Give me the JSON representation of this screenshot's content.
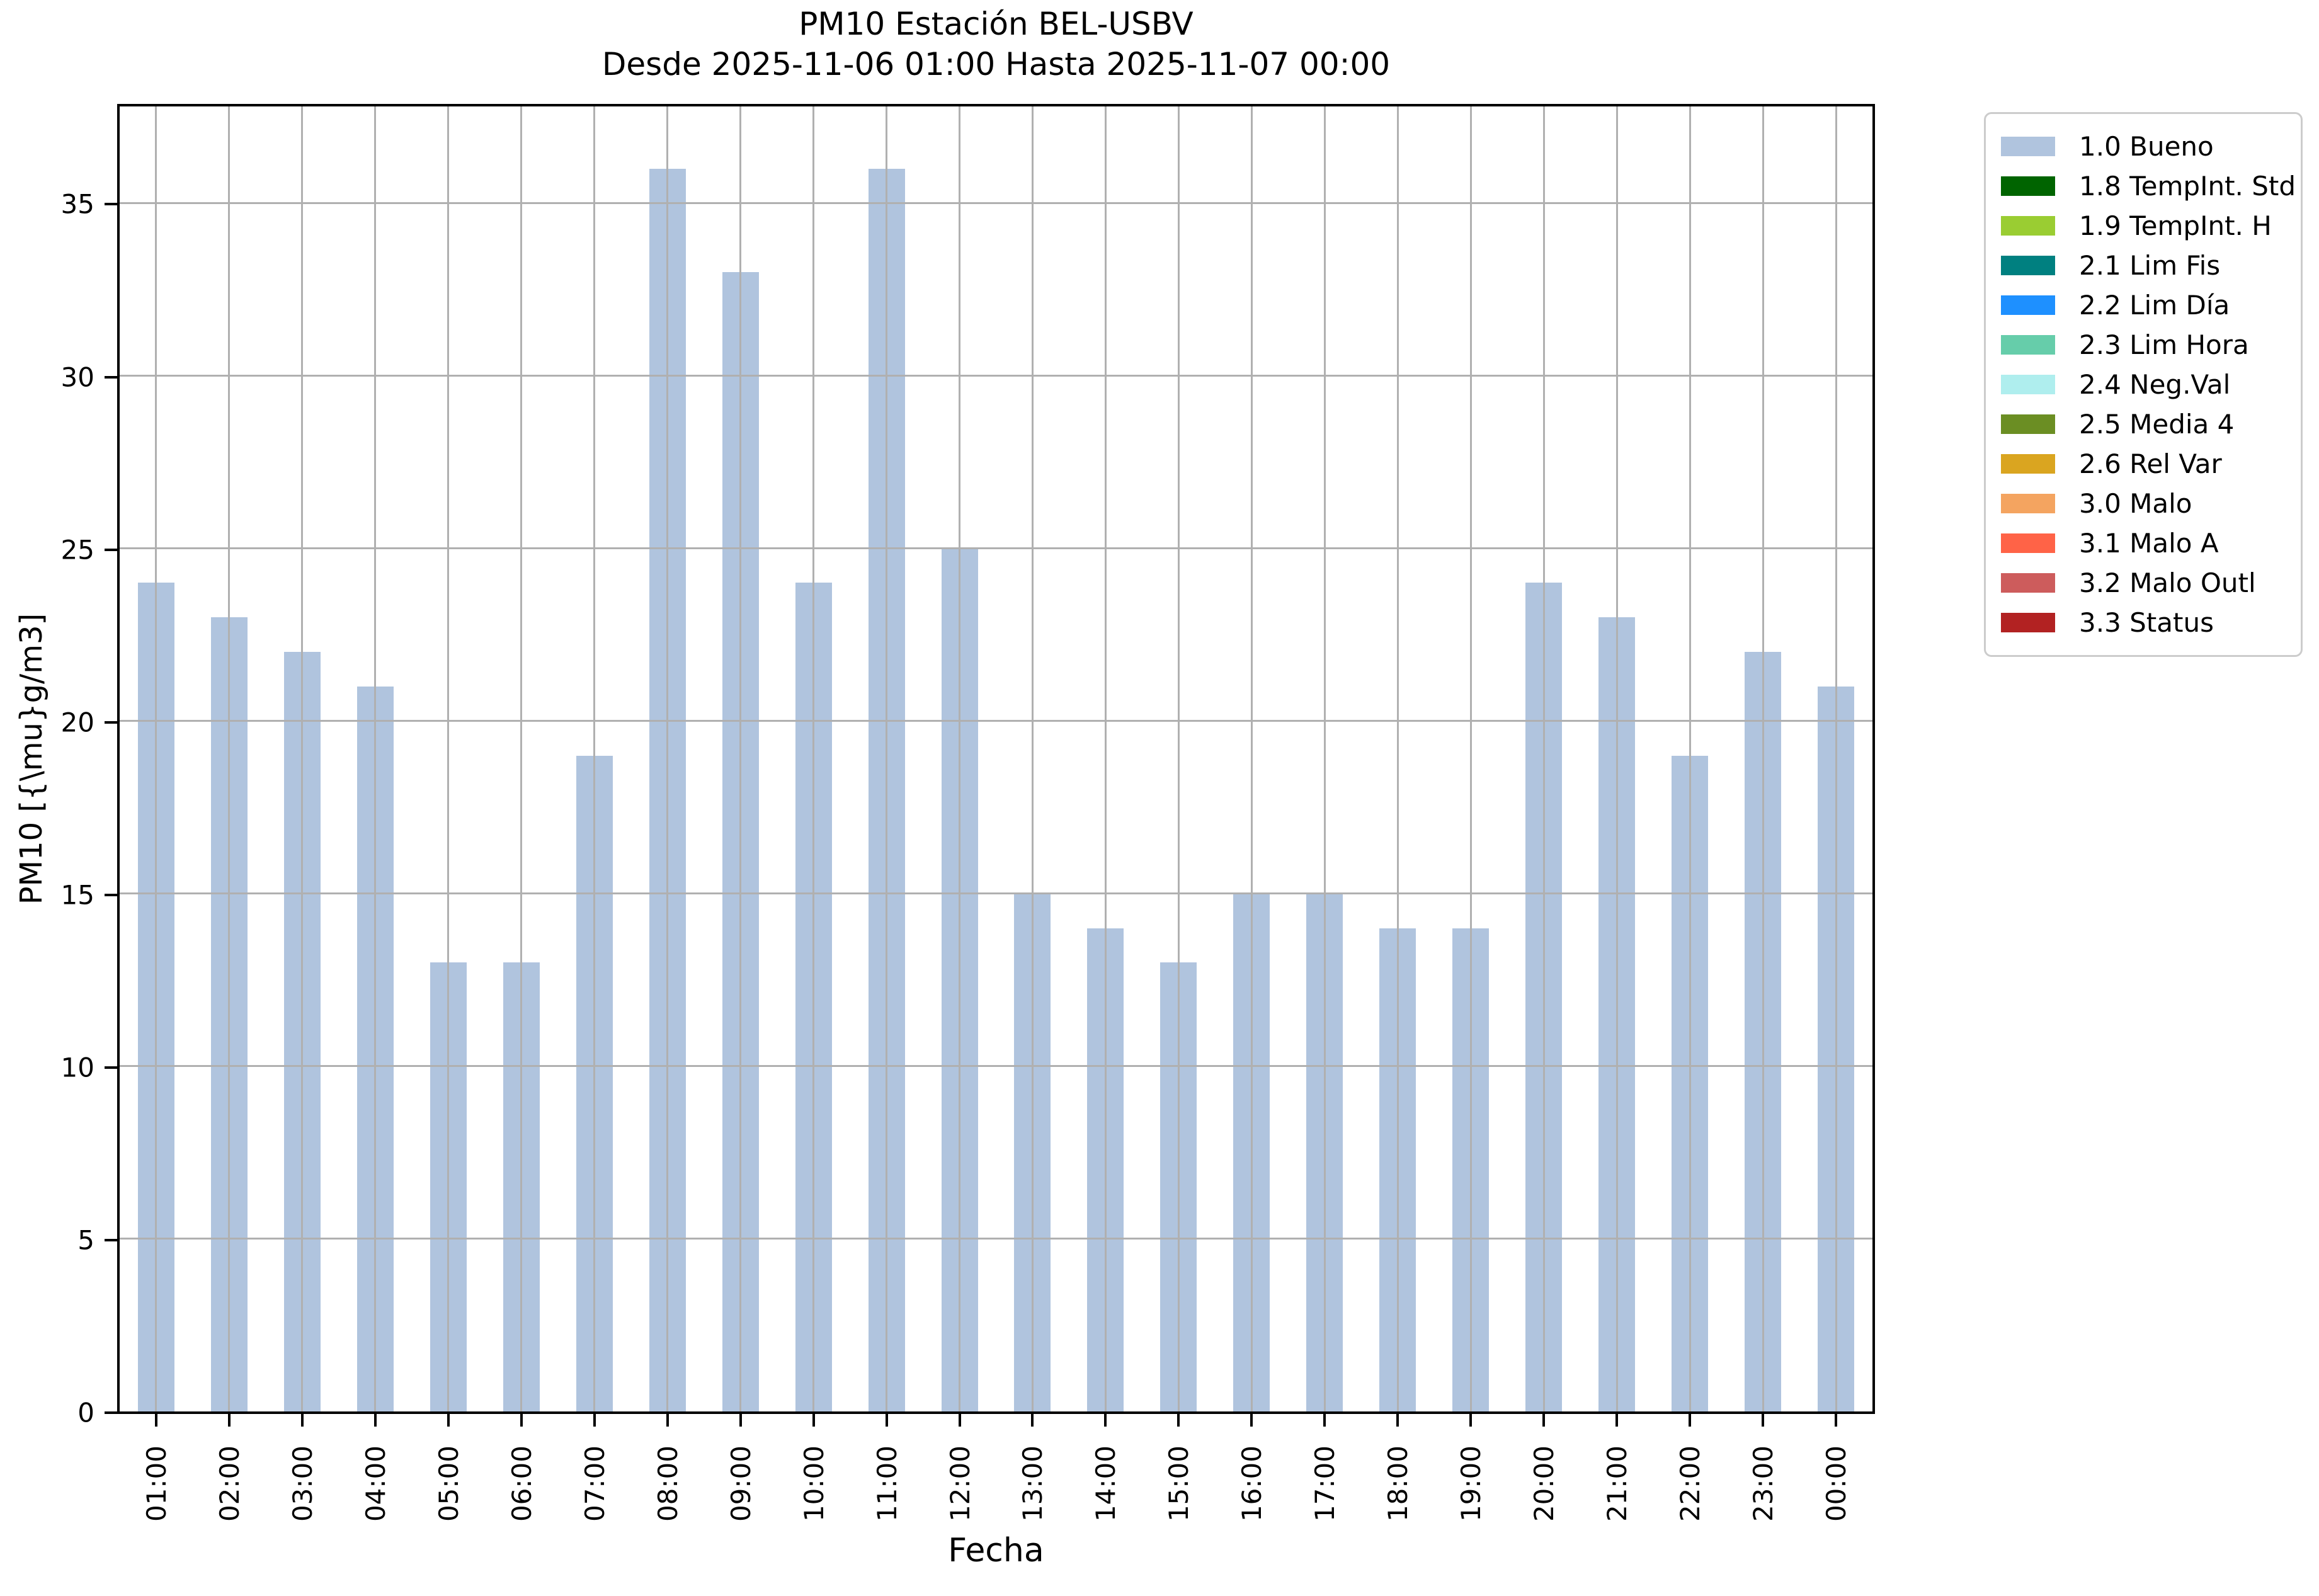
{
  "title": {
    "line1": "PM10 Estación BEL-USBV",
    "line2": "Desde 2025-11-06 01:00 Hasta 2025-11-07 00:00"
  },
  "chart_data": {
    "type": "bar",
    "title": "PM10 Estación BEL-USBV",
    "subtitle": "Desde 2025-11-06 01:00 Hasta 2025-11-07 00:00",
    "xlabel": "Fecha",
    "ylabel": "PM10 [{\\mu}g/m3]",
    "categories": [
      "01:00",
      "02:00",
      "03:00",
      "04:00",
      "05:00",
      "06:00",
      "07:00",
      "08:00",
      "09:00",
      "10:00",
      "11:00",
      "12:00",
      "13:00",
      "14:00",
      "15:00",
      "16:00",
      "17:00",
      "18:00",
      "19:00",
      "20:00",
      "21:00",
      "22:00",
      "23:00",
      "00:00"
    ],
    "series": [
      {
        "name": "1.0 Bueno",
        "color": "#b0c4de",
        "values": [
          24,
          23,
          22,
          21,
          13,
          13,
          19,
          36,
          33,
          24,
          36,
          25,
          15,
          14,
          13,
          15,
          15,
          14,
          14,
          24,
          23,
          19,
          22,
          21
        ]
      }
    ],
    "ylim": [
      0,
      37.8
    ],
    "yticks": [
      0,
      5,
      10,
      15,
      20,
      25,
      30,
      35
    ],
    "grid": true,
    "grid_color": "#b0b0b0",
    "legend_position": "outside-right",
    "legend": [
      {
        "label": "1.0 Bueno",
        "color": "#b0c4de"
      },
      {
        "label": "1.8 TempInt. Std",
        "color": "#006400"
      },
      {
        "label": "1.9 TempInt. H",
        "color": "#9acd32"
      },
      {
        "label": "2.1 Lim Fis",
        "color": "#008080"
      },
      {
        "label": "2.2 Lim Día",
        "color": "#1e90ff"
      },
      {
        "label": "2.3 Lim Hora",
        "color": "#66cdaa"
      },
      {
        "label": "2.4 Neg.Val",
        "color": "#afeeee"
      },
      {
        "label": "2.5 Media 4",
        "color": "#6b8e23"
      },
      {
        "label": "2.6 Rel Var",
        "color": "#daa520"
      },
      {
        "label": "3.0 Malo",
        "color": "#f4a460"
      },
      {
        "label": "3.1 Malo A",
        "color": "#ff6347"
      },
      {
        "label": "3.2 Malo Outl",
        "color": "#cd5c5c"
      },
      {
        "label": "3.3 Status",
        "color": "#b22222"
      }
    ]
  }
}
